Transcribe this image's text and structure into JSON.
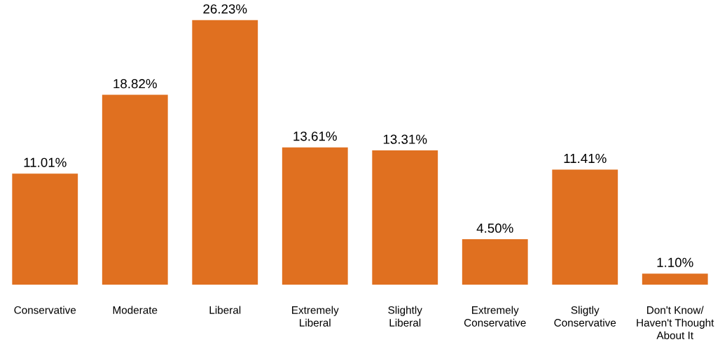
{
  "chart_data": {
    "type": "bar",
    "categories": [
      "Conservative",
      "Moderate",
      "Liberal",
      "Extremely\nLiberal",
      "Slightly\nLiberal",
      "Extremely\nConservative",
      "Sligtly\nConservative",
      "Don't Know/\nHaven't Thought\nAbout It"
    ],
    "values": [
      11.01,
      18.82,
      26.23,
      13.61,
      13.31,
      4.5,
      11.41,
      1.1
    ],
    "value_labels": [
      "11.01%",
      "18.82%",
      "26.23%",
      "13.61%",
      "13.31%",
      "4.50%",
      "11.41%",
      "1.10%"
    ],
    "color": "#e07020",
    "grid": false,
    "legend": false
  }
}
